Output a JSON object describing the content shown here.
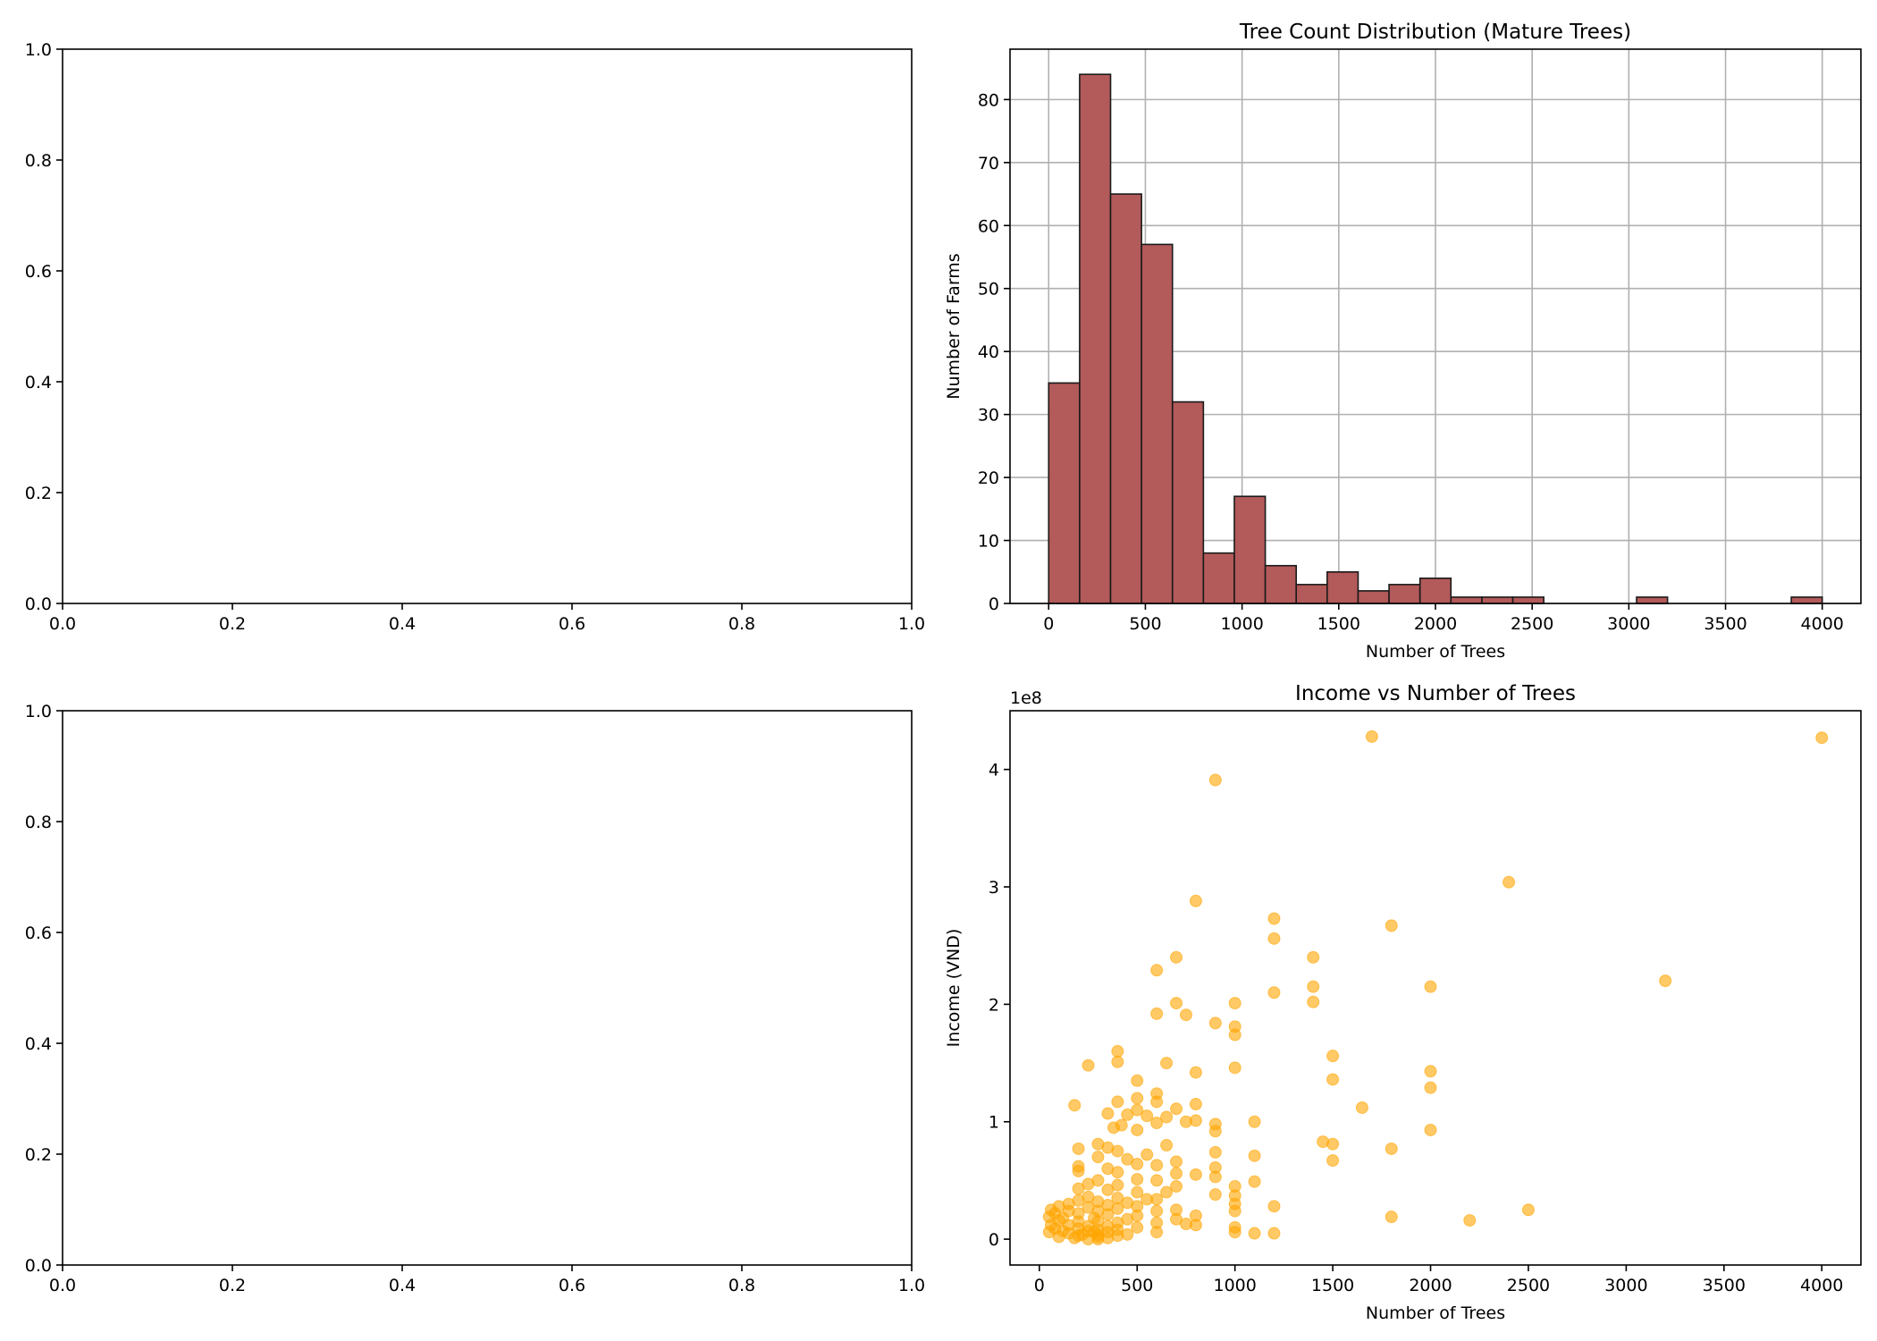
{
  "chart_data": [
    {
      "type": "empty",
      "title": "",
      "xlabel": "",
      "ylabel": "",
      "xlim": [
        0,
        1
      ],
      "ylim": [
        0,
        1
      ],
      "xticks": [
        "0.0",
        "0.2",
        "0.4",
        "0.6",
        "0.8",
        "1.0"
      ],
      "yticks": [
        "0.0",
        "0.2",
        "0.4",
        "0.6",
        "0.8",
        "1.0"
      ],
      "grid": false
    },
    {
      "type": "bar",
      "title": "Tree Count Distribution (Mature Trees)",
      "xlabel": "Number of Trees",
      "ylabel": "Number of Farms",
      "xlim": [
        -200,
        4200
      ],
      "ylim": [
        0,
        88
      ],
      "xticks": [
        "0",
        "500",
        "1000",
        "1500",
        "2000",
        "2500",
        "3000",
        "3500",
        "4000"
      ],
      "yticks": [
        "0",
        "10",
        "20",
        "30",
        "40",
        "50",
        "60",
        "70",
        "80"
      ],
      "grid": true,
      "bar_color": "#b35a5a",
      "edge_color": "#1a1a1a",
      "bins": [
        {
          "x0": 0,
          "x1": 160,
          "count": 35
        },
        {
          "x0": 160,
          "x1": 320,
          "count": 84
        },
        {
          "x0": 320,
          "x1": 480,
          "count": 65
        },
        {
          "x0": 480,
          "x1": 640,
          "count": 57
        },
        {
          "x0": 640,
          "x1": 800,
          "count": 32
        },
        {
          "x0": 800,
          "x1": 960,
          "count": 8
        },
        {
          "x0": 960,
          "x1": 1120,
          "count": 17
        },
        {
          "x0": 1120,
          "x1": 1280,
          "count": 6
        },
        {
          "x0": 1280,
          "x1": 1440,
          "count": 3
        },
        {
          "x0": 1440,
          "x1": 1600,
          "count": 5
        },
        {
          "x0": 1600,
          "x1": 1760,
          "count": 2
        },
        {
          "x0": 1760,
          "x1": 1920,
          "count": 3
        },
        {
          "x0": 1920,
          "x1": 2080,
          "count": 4
        },
        {
          "x0": 2080,
          "x1": 2240,
          "count": 1
        },
        {
          "x0": 2240,
          "x1": 2400,
          "count": 1
        },
        {
          "x0": 2400,
          "x1": 2560,
          "count": 1
        },
        {
          "x0": 2560,
          "x1": 2720,
          "count": 0
        },
        {
          "x0": 2720,
          "x1": 2880,
          "count": 0
        },
        {
          "x0": 2880,
          "x1": 3040,
          "count": 0
        },
        {
          "x0": 3040,
          "x1": 3200,
          "count": 1
        },
        {
          "x0": 3200,
          "x1": 3360,
          "count": 0
        },
        {
          "x0": 3360,
          "x1": 3520,
          "count": 0
        },
        {
          "x0": 3520,
          "x1": 3680,
          "count": 0
        },
        {
          "x0": 3680,
          "x1": 3840,
          "count": 0
        },
        {
          "x0": 3840,
          "x1": 4000,
          "count": 1
        }
      ]
    },
    {
      "type": "empty",
      "title": "",
      "xlabel": "",
      "ylabel": "",
      "xlim": [
        0,
        1
      ],
      "ylim": [
        0,
        1
      ],
      "xticks": [
        "0.0",
        "0.2",
        "0.4",
        "0.6",
        "0.8",
        "1.0"
      ],
      "yticks": [
        "0.0",
        "0.2",
        "0.4",
        "0.6",
        "0.8",
        "1.0"
      ],
      "grid": false
    },
    {
      "type": "scatter",
      "title": "Income vs Number of Trees",
      "xlabel": "Number of Trees",
      "ylabel": "Income (VND)",
      "y_offset_label": "1e8",
      "xlim": [
        -150,
        4200
      ],
      "ylim": [
        -0.22,
        4.5
      ],
      "xticks": [
        "0",
        "500",
        "1000",
        "1500",
        "2000",
        "2500",
        "3000",
        "3500",
        "4000"
      ],
      "yticks": [
        "0",
        "1",
        "2",
        "3",
        "4"
      ],
      "grid": false,
      "point_color": "#ffa500",
      "point_alpha": 0.6,
      "points": [
        [
          1700,
          4.28
        ],
        [
          4000,
          4.27
        ],
        [
          900,
          3.91
        ],
        [
          2400,
          3.04
        ],
        [
          800,
          2.88
        ],
        [
          1200,
          2.73
        ],
        [
          1800,
          2.67
        ],
        [
          1200,
          2.56
        ],
        [
          700,
          2.4
        ],
        [
          1400,
          2.4
        ],
        [
          600,
          2.29
        ],
        [
          3200,
          2.2
        ],
        [
          1400,
          2.15
        ],
        [
          2000,
          2.15
        ],
        [
          1200,
          2.1
        ],
        [
          1400,
          2.02
        ],
        [
          700,
          2.01
        ],
        [
          1000,
          2.01
        ],
        [
          600,
          1.92
        ],
        [
          750,
          1.91
        ],
        [
          900,
          1.84
        ],
        [
          1000,
          1.81
        ],
        [
          1000,
          1.74
        ],
        [
          400,
          1.6
        ],
        [
          1500,
          1.56
        ],
        [
          400,
          1.51
        ],
        [
          650,
          1.5
        ],
        [
          250,
          1.48
        ],
        [
          1000,
          1.46
        ],
        [
          2000,
          1.43
        ],
        [
          800,
          1.42
        ],
        [
          1500,
          1.36
        ],
        [
          500,
          1.35
        ],
        [
          2000,
          1.29
        ],
        [
          600,
          1.24
        ],
        [
          500,
          1.2
        ],
        [
          400,
          1.17
        ],
        [
          600,
          1.17
        ],
        [
          800,
          1.15
        ],
        [
          180,
          1.14
        ],
        [
          1650,
          1.12
        ],
        [
          500,
          1.1
        ],
        [
          700,
          1.11
        ],
        [
          350,
          1.07
        ],
        [
          450,
          1.06
        ],
        [
          550,
          1.05
        ],
        [
          650,
          1.04
        ],
        [
          750,
          1.0
        ],
        [
          800,
          1.01
        ],
        [
          1100,
          1.0
        ],
        [
          600,
          0.99
        ],
        [
          900,
          0.98
        ],
        [
          420,
          0.97
        ],
        [
          380,
          0.95
        ],
        [
          500,
          0.93
        ],
        [
          900,
          0.92
        ],
        [
          2000,
          0.93
        ],
        [
          1450,
          0.83
        ],
        [
          1500,
          0.81
        ],
        [
          300,
          0.81
        ],
        [
          350,
          0.78
        ],
        [
          200,
          0.77
        ],
        [
          1800,
          0.77
        ],
        [
          650,
          0.8
        ],
        [
          900,
          0.74
        ],
        [
          1100,
          0.71
        ],
        [
          550,
          0.72
        ],
        [
          400,
          0.75
        ],
        [
          300,
          0.7
        ],
        [
          450,
          0.68
        ],
        [
          700,
          0.66
        ],
        [
          1500,
          0.67
        ],
        [
          200,
          0.62
        ],
        [
          350,
          0.6
        ],
        [
          500,
          0.64
        ],
        [
          600,
          0.63
        ],
        [
          900,
          0.61
        ],
        [
          200,
          0.58
        ],
        [
          400,
          0.57
        ],
        [
          700,
          0.56
        ],
        [
          800,
          0.55
        ],
        [
          900,
          0.53
        ],
        [
          300,
          0.5
        ],
        [
          500,
          0.51
        ],
        [
          600,
          0.5
        ],
        [
          1100,
          0.49
        ],
        [
          250,
          0.47
        ],
        [
          400,
          0.46
        ],
        [
          700,
          0.45
        ],
        [
          1000,
          0.45
        ],
        [
          200,
          0.43
        ],
        [
          350,
          0.42
        ],
        [
          500,
          0.4
        ],
        [
          650,
          0.4
        ],
        [
          900,
          0.38
        ],
        [
          1000,
          0.37
        ],
        [
          250,
          0.36
        ],
        [
          400,
          0.35
        ],
        [
          550,
          0.34
        ],
        [
          600,
          0.34
        ],
        [
          200,
          0.33
        ],
        [
          300,
          0.32
        ],
        [
          450,
          0.31
        ],
        [
          1000,
          0.3
        ],
        [
          150,
          0.3
        ],
        [
          350,
          0.29
        ],
        [
          500,
          0.28
        ],
        [
          1200,
          0.28
        ],
        [
          100,
          0.28
        ],
        [
          250,
          0.27
        ],
        [
          400,
          0.26
        ],
        [
          700,
          0.25
        ],
        [
          60,
          0.25
        ],
        [
          150,
          0.24
        ],
        [
          300,
          0.24
        ],
        [
          600,
          0.24
        ],
        [
          1000,
          0.24
        ],
        [
          80,
          0.22
        ],
        [
          200,
          0.22
        ],
        [
          350,
          0.21
        ],
        [
          500,
          0.2
        ],
        [
          800,
          0.2
        ],
        [
          1800,
          0.19
        ],
        [
          50,
          0.19
        ],
        [
          120,
          0.18
        ],
        [
          280,
          0.18
        ],
        [
          450,
          0.17
        ],
        [
          700,
          0.17
        ],
        [
          2200,
          0.16
        ],
        [
          100,
          0.16
        ],
        [
          200,
          0.15
        ],
        [
          300,
          0.15
        ],
        [
          400,
          0.14
        ],
        [
          600,
          0.14
        ],
        [
          750,
          0.13
        ],
        [
          800,
          0.12
        ],
        [
          60,
          0.12
        ],
        [
          150,
          0.12
        ],
        [
          250,
          0.11
        ],
        [
          350,
          0.11
        ],
        [
          500,
          0.1
        ],
        [
          1000,
          0.1
        ],
        [
          80,
          0.09
        ],
        [
          200,
          0.09
        ],
        [
          300,
          0.08
        ],
        [
          400,
          0.08
        ],
        [
          120,
          0.07
        ],
        [
          250,
          0.07
        ],
        [
          350,
          0.06
        ],
        [
          50,
          0.06
        ],
        [
          600,
          0.06
        ],
        [
          1000,
          0.06
        ],
        [
          1100,
          0.05
        ],
        [
          1200,
          0.05
        ],
        [
          150,
          0.05
        ],
        [
          300,
          0.04
        ],
        [
          450,
          0.04
        ],
        [
          200,
          0.03
        ],
        [
          400,
          0.03
        ],
        [
          100,
          0.02
        ],
        [
          300,
          0.02
        ],
        [
          2500,
          0.25
        ],
        [
          180,
          0.01
        ],
        [
          250,
          0.0
        ],
        [
          300,
          0.0
        ],
        [
          350,
          0.01
        ],
        [
          220,
          0.04
        ],
        [
          280,
          0.06
        ]
      ]
    }
  ]
}
